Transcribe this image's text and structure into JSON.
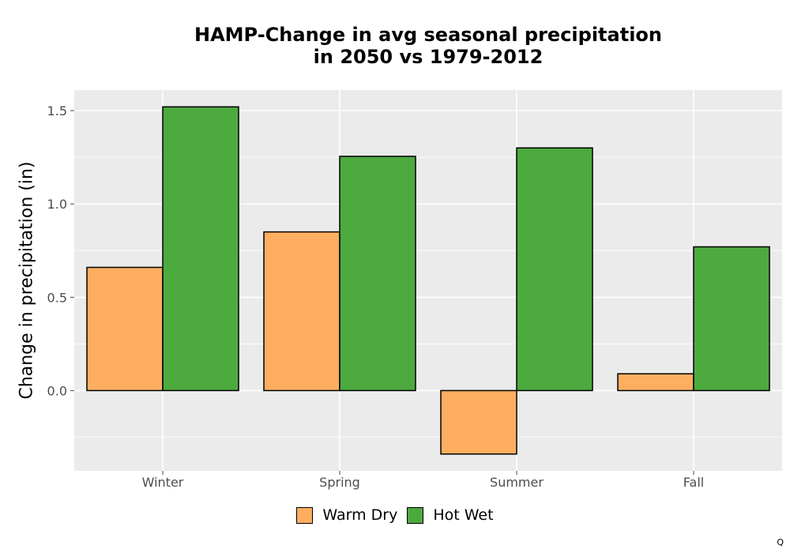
{
  "chart_data": {
    "type": "bar",
    "title_line1": "HAMP-Change in avg seasonal precipitation",
    "title_line2": "in 2050 vs 1979-2012",
    "xlabel": "",
    "ylabel": "Change in precipitation (in)",
    "categories": [
      "Winter",
      "Spring",
      "Summer",
      "Fall"
    ],
    "series": [
      {
        "name": "Warm Dry",
        "color": "#FDAE61",
        "values": [
          0.66,
          0.85,
          -0.34,
          0.09
        ]
      },
      {
        "name": "Hot Wet",
        "color": "#4DAA3F",
        "values": [
          1.52,
          1.255,
          1.3,
          0.77
        ]
      }
    ],
    "ylim": [
      -0.43,
      1.61
    ],
    "yticks": [
      0.0,
      0.5,
      1.0,
      1.5
    ],
    "ytick_labels": [
      "0.0",
      "0.5",
      "1.0",
      "1.5"
    ],
    "grid": true,
    "legend_position": "bottom"
  },
  "corner_mark": "Q"
}
